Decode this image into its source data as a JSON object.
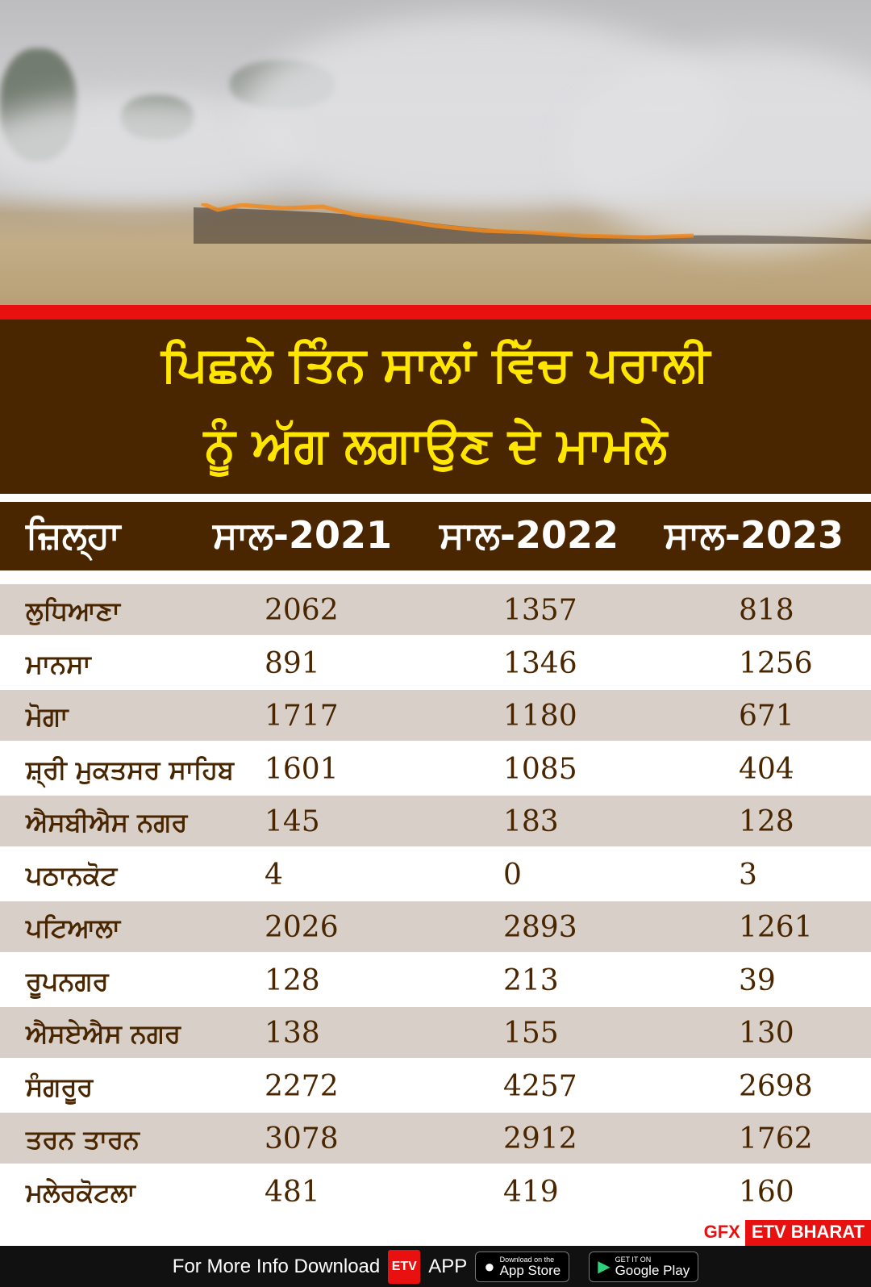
{
  "title": {
    "line1": "ਪਿਛਲੇ ਤਿੰਨ ਸਾਲਾਂ ਵਿੱਚ ਪਰਾਲੀ",
    "line2": "ਨੂੰ ਅੱਗ ਲਗਾਉਣ ਦੇ ਮਾਮਲੇ"
  },
  "colors": {
    "header_bg": "#4a2600",
    "title_text": "#ffe600",
    "accent_red": "#e8110f",
    "row_alt": "#d8d0c8",
    "cell_text": "#4a2600"
  },
  "chart_data": {
    "type": "table",
    "columns": [
      "ਜ਼ਿਲ੍ਹਾ",
      "ਸਾਲ-2021",
      "ਸਾਲ-2022",
      "ਸਾਲ-2023"
    ],
    "rows": [
      [
        "ਲੁਧਿਆਣਾ",
        "2062",
        "1357",
        "818"
      ],
      [
        "ਮਾਨਸਾ",
        "891",
        "1346",
        "1256"
      ],
      [
        "ਮੋਗਾ",
        "1717",
        "1180",
        "671"
      ],
      [
        "ਸ਼੍ਰੀ ਮੁਕਤਸਰ ਸਾਹਿਬ",
        "1601",
        "1085",
        "404"
      ],
      [
        "ਐਸਬੀਐਸ ਨਗਰ",
        "145",
        "183",
        "128"
      ],
      [
        "ਪਠਾਨਕੋਟ",
        "4",
        "0",
        "3"
      ],
      [
        "ਪਟਿਆਲਾ",
        "2026",
        "2893",
        "1261"
      ],
      [
        "ਰੂਪਨਗਰ",
        "128",
        "213",
        "39"
      ],
      [
        "ਐਸਏਐਸ ਨਗਰ",
        "138",
        "155",
        "130"
      ],
      [
        "ਸੰਗਰੂਰ",
        "2272",
        "4257",
        "2698"
      ],
      [
        "ਤਰਨ ਤਾਰਨ",
        "3078",
        "2912",
        "1762"
      ],
      [
        "ਮਲੇਰਕੋਟਲਾ",
        "481",
        "419",
        "160"
      ]
    ]
  },
  "credit": {
    "gfx": "GFX",
    "brand": "ETV BHARAT"
  },
  "footer": {
    "text": "For More Info Download",
    "etv_logo": "ETV",
    "app": "APP",
    "appstore_small": "Download on the",
    "appstore_big": "App Store",
    "googleplay_small": "GET IT ON",
    "googleplay_big": "Google Play"
  }
}
